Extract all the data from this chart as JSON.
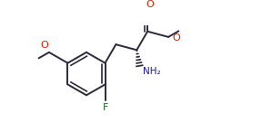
{
  "bg_color": "#ffffff",
  "bond_color": "#2a2a3a",
  "line_width": 1.4,
  "figsize": [
    2.88,
    1.36
  ],
  "dpi": 100,
  "xlim": [
    0,
    2.88
  ],
  "ylim": [
    0,
    1.36
  ],
  "font_size": 7.5,
  "red": "#cc2200",
  "blue": "#1a1a99",
  "green": "#1a6622"
}
